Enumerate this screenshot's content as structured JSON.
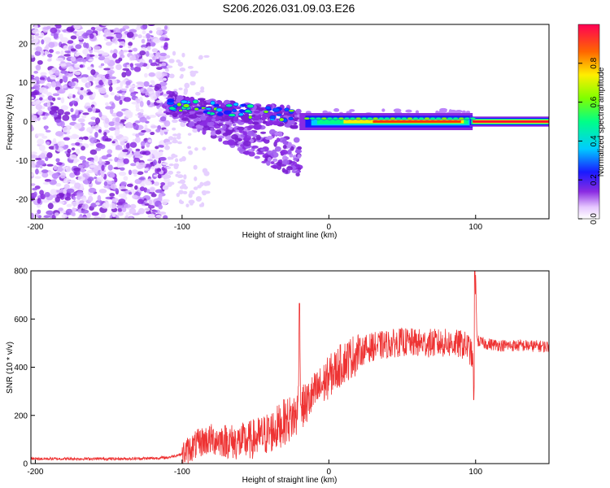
{
  "chart_data": [
    {
      "type": "heatmap",
      "title": "S206.2026.031.09.03.E26",
      "xlabel": "Height of straight line (km)",
      "ylabel": "Frequency (Hz)",
      "xlim": [
        -203,
        150
      ],
      "ylim": [
        -25,
        25
      ],
      "x_ticks": [
        "-200",
        "-100",
        "0",
        "100"
      ],
      "y_ticks": [
        "20",
        "10",
        "0",
        "-10",
        "-20"
      ],
      "colorbar": {
        "label": "Normalized spectral amplitude",
        "range": [
          0,
          1
        ],
        "ticks": [
          "0.0",
          "0.2",
          "0.4",
          "0.6",
          "0.8"
        ]
      }
    },
    {
      "type": "line",
      "xlabel": "Height of straight line (km)",
      "ylabel": "SNR (10 * v/v)",
      "xlim": [
        -203,
        150
      ],
      "ylim": [
        0,
        800
      ],
      "x_ticks": [
        "-200",
        "-100",
        "0",
        "100"
      ],
      "y_ticks": [
        "0",
        "200",
        "400",
        "600",
        "800"
      ],
      "series": [
        {
          "name": "SNR",
          "color": "#ee3333",
          "x": [
            -203,
            -180,
            -160,
            -140,
            -120,
            -110,
            -100,
            -95,
            -90,
            -85,
            -80,
            -75,
            -70,
            -65,
            -60,
            -55,
            -50,
            -45,
            -40,
            -35,
            -30,
            -25,
            -21,
            -20,
            -19,
            -15,
            -10,
            -5,
            0,
            5,
            10,
            15,
            20,
            25,
            30,
            35,
            40,
            45,
            50,
            60,
            70,
            80,
            90,
            95,
            98,
            99,
            100,
            101,
            105,
            110,
            120,
            130,
            140,
            150
          ],
          "values": [
            20,
            20,
            20,
            20,
            22,
            25,
            40,
            60,
            80,
            95,
            100,
            100,
            95,
            90,
            90,
            95,
            105,
            115,
            130,
            150,
            175,
            190,
            210,
            630,
            230,
            250,
            290,
            320,
            360,
            390,
            420,
            440,
            460,
            475,
            485,
            490,
            495,
            500,
            505,
            500,
            500,
            500,
            495,
            485,
            440,
            300,
            780,
            510,
            500,
            495,
            490,
            490,
            488,
            485
          ]
        }
      ]
    }
  ]
}
